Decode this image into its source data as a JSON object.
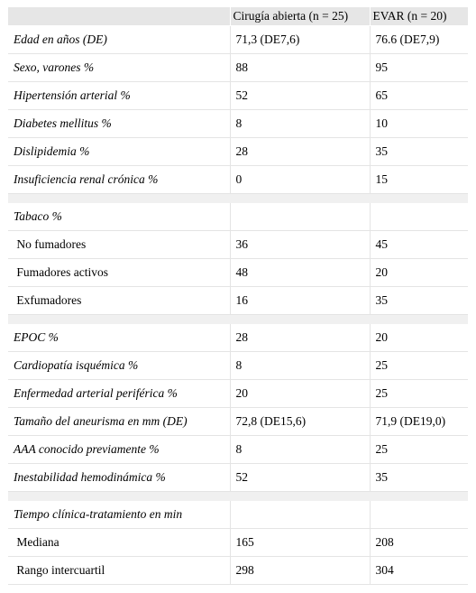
{
  "header": [
    "",
    "Cirugía abierta (n = 25)",
    "EVAR (n = 20)"
  ],
  "rows": [
    {
      "type": "row",
      "label": "Edad en años (DE)",
      "italic": true,
      "c1": "71,3 (DE7,6)",
      "c2": "76.6 (DE7,9)"
    },
    {
      "type": "row",
      "label": "Sexo, varones %",
      "italic": true,
      "c1": "88",
      "c2": "95"
    },
    {
      "type": "row",
      "label": "Hipertensión arterial %",
      "italic": true,
      "c1": "52",
      "c2": "65"
    },
    {
      "type": "row",
      "label": "Diabetes mellitus %",
      "italic": true,
      "c1": "8",
      "c2": "10"
    },
    {
      "type": "row",
      "label": "Dislipidemia %",
      "italic": true,
      "c1": "28",
      "c2": "35"
    },
    {
      "type": "row",
      "label": "Insuficiencia renal crónica %",
      "italic": true,
      "c1": "0",
      "c2": "15"
    },
    {
      "type": "spacer"
    },
    {
      "type": "row",
      "label": "Tabaco %",
      "italic": true,
      "c1": "",
      "c2": ""
    },
    {
      "type": "row",
      "label": " No fumadores",
      "italic": false,
      "c1": "36",
      "c2": "45"
    },
    {
      "type": "row",
      "label": " Fumadores activos",
      "italic": false,
      "c1": "48",
      "c2": "20"
    },
    {
      "type": "row",
      "label": " Exfumadores",
      "italic": false,
      "c1": "16",
      "c2": "35"
    },
    {
      "type": "spacer"
    },
    {
      "type": "row",
      "label": "EPOC %",
      "italic": true,
      "c1": "28",
      "c2": "20"
    },
    {
      "type": "row",
      "label": "Cardiopatía isquémica %",
      "italic": true,
      "c1": "8",
      "c2": "25"
    },
    {
      "type": "row",
      "label": "Enfermedad arterial periférica %",
      "italic": true,
      "c1": "20",
      "c2": "25"
    },
    {
      "type": "row",
      "label": "Tamaño del aneurisma en mm (DE)",
      "italic": true,
      "c1": "72,8 (DE15,6)",
      "c2": "71,9 (DE19,0)"
    },
    {
      "type": "row",
      "label": "AAA conocido previamente %",
      "italic": true,
      "c1": "8",
      "c2": "25"
    },
    {
      "type": "row",
      "label": "Inestabilidad hemodinámica %",
      "italic": true,
      "c1": "52",
      "c2": "35"
    },
    {
      "type": "spacer"
    },
    {
      "type": "row",
      "label": "Tiempo clínica-tratamiento en min",
      "italic": true,
      "c1": "",
      "c2": ""
    },
    {
      "type": "row",
      "label": " Mediana",
      "italic": false,
      "c1": "165",
      "c2": "208"
    },
    {
      "type": "row",
      "label": " Rango intercuartil",
      "italic": false,
      "c1": "298",
      "c2": "304"
    }
  ]
}
